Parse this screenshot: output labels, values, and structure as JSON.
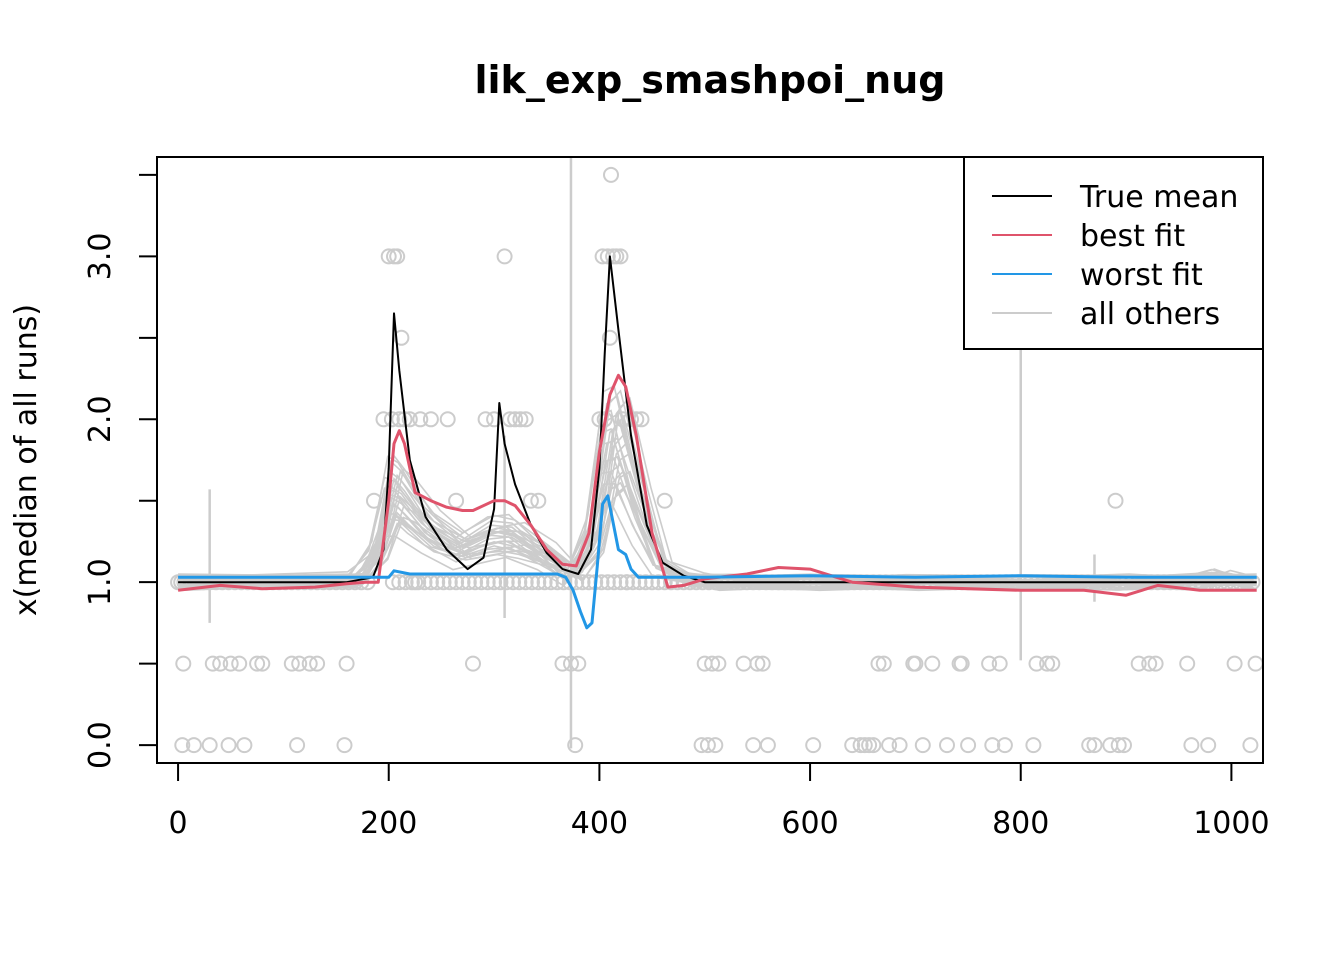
{
  "chart_data": {
    "type": "line",
    "title": "lik_exp_smashpoi_nug",
    "xlabel": "",
    "ylabel": "x(median of all runs)",
    "xlim": [
      -20,
      1030
    ],
    "ylim": [
      -0.11,
      3.61
    ],
    "x_ticks": [
      0,
      200,
      400,
      600,
      800,
      1000
    ],
    "x_tick_labels": [
      "0",
      "200",
      "400",
      "600",
      "800",
      "1000"
    ],
    "y_ticks": [
      0,
      0.5,
      1,
      1.5,
      2,
      2.5,
      3,
      3.5
    ],
    "y_tick_labels": [
      "0.0",
      "",
      "1.0",
      "",
      "2.0",
      "",
      "3.0",
      ""
    ],
    "grid": false,
    "legend_position": "top-right",
    "colors": {
      "true_mean": "#000000",
      "best_fit": "#DF536B",
      "worst_fit": "#2297E6",
      "all_others": "#CCCCCC"
    },
    "legend": [
      {
        "label": "True mean",
        "color": "#000000"
      },
      {
        "label": "best fit",
        "color": "#DF536B"
      },
      {
        "label": "worst fit",
        "color": "#2297E6"
      },
      {
        "label": "all others",
        "color": "#CCCCCC"
      }
    ],
    "series": [
      {
        "name": "True mean",
        "x": [
          0,
          160,
          185,
          195,
          200,
          205,
          210,
          220,
          235,
          255,
          275,
          290,
          300,
          305,
          310,
          320,
          335,
          350,
          365,
          380,
          392,
          400,
          405,
          410,
          418,
          430,
          445,
          460,
          480,
          500,
          520,
          560,
          600,
          700,
          800,
          900,
          1024
        ],
        "y": [
          1.0,
          1.0,
          1.03,
          1.2,
          1.7,
          2.65,
          2.3,
          1.75,
          1.4,
          1.2,
          1.08,
          1.15,
          1.45,
          2.1,
          1.85,
          1.6,
          1.35,
          1.18,
          1.08,
          1.05,
          1.2,
          1.7,
          2.4,
          3.0,
          2.55,
          1.9,
          1.35,
          1.12,
          1.04,
          1.0,
          1.0,
          1.0,
          1.0,
          1.0,
          1.0,
          1.0,
          1.0
        ]
      },
      {
        "name": "best fit",
        "x": [
          0,
          40,
          80,
          130,
          160,
          178,
          190,
          200,
          205,
          210,
          215,
          225,
          240,
          255,
          270,
          280,
          300,
          310,
          320,
          335,
          350,
          365,
          378,
          390,
          400,
          410,
          418,
          425,
          435,
          450,
          465,
          480,
          500,
          540,
          570,
          600,
          640,
          700,
          800,
          860,
          900,
          930,
          970,
          1024
        ],
        "y": [
          0.95,
          0.98,
          0.96,
          0.97,
          0.99,
          1.0,
          1.0,
          1.5,
          1.85,
          1.93,
          1.85,
          1.55,
          1.5,
          1.46,
          1.44,
          1.44,
          1.5,
          1.5,
          1.47,
          1.35,
          1.2,
          1.11,
          1.1,
          1.3,
          1.8,
          2.15,
          2.27,
          2.2,
          1.9,
          1.3,
          0.97,
          0.98,
          1.02,
          1.05,
          1.09,
          1.08,
          1.0,
          0.97,
          0.95,
          0.95,
          0.92,
          0.98,
          0.95,
          0.95
        ]
      },
      {
        "name": "worst fit",
        "x": [
          0,
          150,
          200,
          205,
          220,
          240,
          300,
          350,
          360,
          368,
          375,
          382,
          388,
          393,
          398,
          403,
          408,
          412,
          418,
          425,
          430,
          437,
          450,
          500,
          600,
          700,
          800,
          900,
          1024
        ],
        "y": [
          1.03,
          1.03,
          1.03,
          1.07,
          1.05,
          1.05,
          1.05,
          1.05,
          1.05,
          1.03,
          0.95,
          0.82,
          0.72,
          0.75,
          1.1,
          1.48,
          1.53,
          1.4,
          1.2,
          1.17,
          1.08,
          1.03,
          1.03,
          1.03,
          1.04,
          1.03,
          1.04,
          1.03,
          1.03
        ]
      }
    ],
    "observations": [
      {
        "x": 3,
        "y": 1.0
      },
      {
        "x": 5,
        "y": 0.5
      },
      {
        "x": 4,
        "y": 0.0
      },
      {
        "x": 15,
        "y": 0.0
      },
      {
        "x": 30,
        "y": 0.0
      },
      {
        "x": 33,
        "y": 0.5
      },
      {
        "x": 40,
        "y": 0.5
      },
      {
        "x": 48,
        "y": 0.0
      },
      {
        "x": 50,
        "y": 0.5
      },
      {
        "x": 58,
        "y": 0.5
      },
      {
        "x": 63,
        "y": 0.0
      },
      {
        "x": 75,
        "y": 0.5
      },
      {
        "x": 80,
        "y": 0.5
      },
      {
        "x": 108,
        "y": 0.5
      },
      {
        "x": 113,
        "y": 0.0
      },
      {
        "x": 115,
        "y": 0.5
      },
      {
        "x": 125,
        "y": 0.5
      },
      {
        "x": 132,
        "y": 0.5
      },
      {
        "x": 158,
        "y": 0.0
      },
      {
        "x": 160,
        "y": 0.5
      },
      {
        "x": 186,
        "y": 1.5
      },
      {
        "x": 195,
        "y": 2.0
      },
      {
        "x": 200,
        "y": 3.0
      },
      {
        "x": 203,
        "y": 2.0
      },
      {
        "x": 205,
        "y": 3.0
      },
      {
        "x": 208,
        "y": 3.0
      },
      {
        "x": 210,
        "y": 2.0
      },
      {
        "x": 212,
        "y": 2.5
      },
      {
        "x": 215,
        "y": 2.0
      },
      {
        "x": 220,
        "y": 2.0
      },
      {
        "x": 225,
        "y": 1.0
      },
      {
        "x": 230,
        "y": 2.0
      },
      {
        "x": 240,
        "y": 2.0
      },
      {
        "x": 256,
        "y": 2.0
      },
      {
        "x": 264,
        "y": 1.5
      },
      {
        "x": 280,
        "y": 0.5
      },
      {
        "x": 292,
        "y": 2.0
      },
      {
        "x": 300,
        "y": 2.0
      },
      {
        "x": 310,
        "y": 3.0
      },
      {
        "x": 315,
        "y": 2.0
      },
      {
        "x": 320,
        "y": 2.0
      },
      {
        "x": 325,
        "y": 2.0
      },
      {
        "x": 330,
        "y": 2.0
      },
      {
        "x": 335,
        "y": 1.5
      },
      {
        "x": 342,
        "y": 1.5
      },
      {
        "x": 365,
        "y": 0.5
      },
      {
        "x": 373,
        "y": 0.5
      },
      {
        "x": 377,
        "y": 0.0
      },
      {
        "x": 380,
        "y": 0.5
      },
      {
        "x": 400,
        "y": 2.0
      },
      {
        "x": 403,
        "y": 3.0
      },
      {
        "x": 405,
        "y": 2.0
      },
      {
        "x": 408,
        "y": 3.0
      },
      {
        "x": 410,
        "y": 2.5
      },
      {
        "x": 411,
        "y": 3.5
      },
      {
        "x": 413,
        "y": 3.0
      },
      {
        "x": 416,
        "y": 3.0
      },
      {
        "x": 420,
        "y": 3.0
      },
      {
        "x": 422,
        "y": 2.0
      },
      {
        "x": 426,
        "y": 1.0
      },
      {
        "x": 430,
        "y": 2.0
      },
      {
        "x": 435,
        "y": 2.0
      },
      {
        "x": 440,
        "y": 2.0
      },
      {
        "x": 462,
        "y": 1.5
      },
      {
        "x": 497,
        "y": 0.0
      },
      {
        "x": 500,
        "y": 0.5
      },
      {
        "x": 503,
        "y": 0.0
      },
      {
        "x": 507,
        "y": 0.5
      },
      {
        "x": 510,
        "y": 0.0
      },
      {
        "x": 513,
        "y": 0.5
      },
      {
        "x": 537,
        "y": 0.5
      },
      {
        "x": 546,
        "y": 0.0
      },
      {
        "x": 550,
        "y": 0.5
      },
      {
        "x": 555,
        "y": 0.5
      },
      {
        "x": 560,
        "y": 0.0
      },
      {
        "x": 603,
        "y": 0.0
      },
      {
        "x": 640,
        "y": 0.0
      },
      {
        "x": 648,
        "y": 0.0
      },
      {
        "x": 652,
        "y": 0.0
      },
      {
        "x": 656,
        "y": 0.0
      },
      {
        "x": 660,
        "y": 0.0
      },
      {
        "x": 665,
        "y": 0.5
      },
      {
        "x": 670,
        "y": 0.5
      },
      {
        "x": 675,
        "y": 0.0
      },
      {
        "x": 685,
        "y": 0.0
      },
      {
        "x": 698,
        "y": 0.5
      },
      {
        "x": 700,
        "y": 0.5
      },
      {
        "x": 707,
        "y": 0.0
      },
      {
        "x": 716,
        "y": 0.5
      },
      {
        "x": 730,
        "y": 0.0
      },
      {
        "x": 742,
        "y": 0.5
      },
      {
        "x": 744,
        "y": 0.5
      },
      {
        "x": 750,
        "y": 0.0
      },
      {
        "x": 770,
        "y": 0.5
      },
      {
        "x": 773,
        "y": 0.0
      },
      {
        "x": 780,
        "y": 0.5
      },
      {
        "x": 785,
        "y": 0.0
      },
      {
        "x": 812,
        "y": 0.0
      },
      {
        "x": 815,
        "y": 0.5
      },
      {
        "x": 825,
        "y": 0.5
      },
      {
        "x": 830,
        "y": 0.5
      },
      {
        "x": 865,
        "y": 0.0
      },
      {
        "x": 870,
        "y": 0.0
      },
      {
        "x": 885,
        "y": 0.0
      },
      {
        "x": 890,
        "y": 1.5
      },
      {
        "x": 893,
        "y": 0.0
      },
      {
        "x": 898,
        "y": 0.0
      },
      {
        "x": 912,
        "y": 0.5
      },
      {
        "x": 922,
        "y": 0.5
      },
      {
        "x": 928,
        "y": 0.5
      },
      {
        "x": 958,
        "y": 0.5
      },
      {
        "x": 962,
        "y": 0.0
      },
      {
        "x": 978,
        "y": 0.0
      },
      {
        "x": 1003,
        "y": 0.5
      },
      {
        "x": 1018,
        "y": 0.0
      },
      {
        "x": 1023,
        "y": 0.5
      }
    ]
  }
}
